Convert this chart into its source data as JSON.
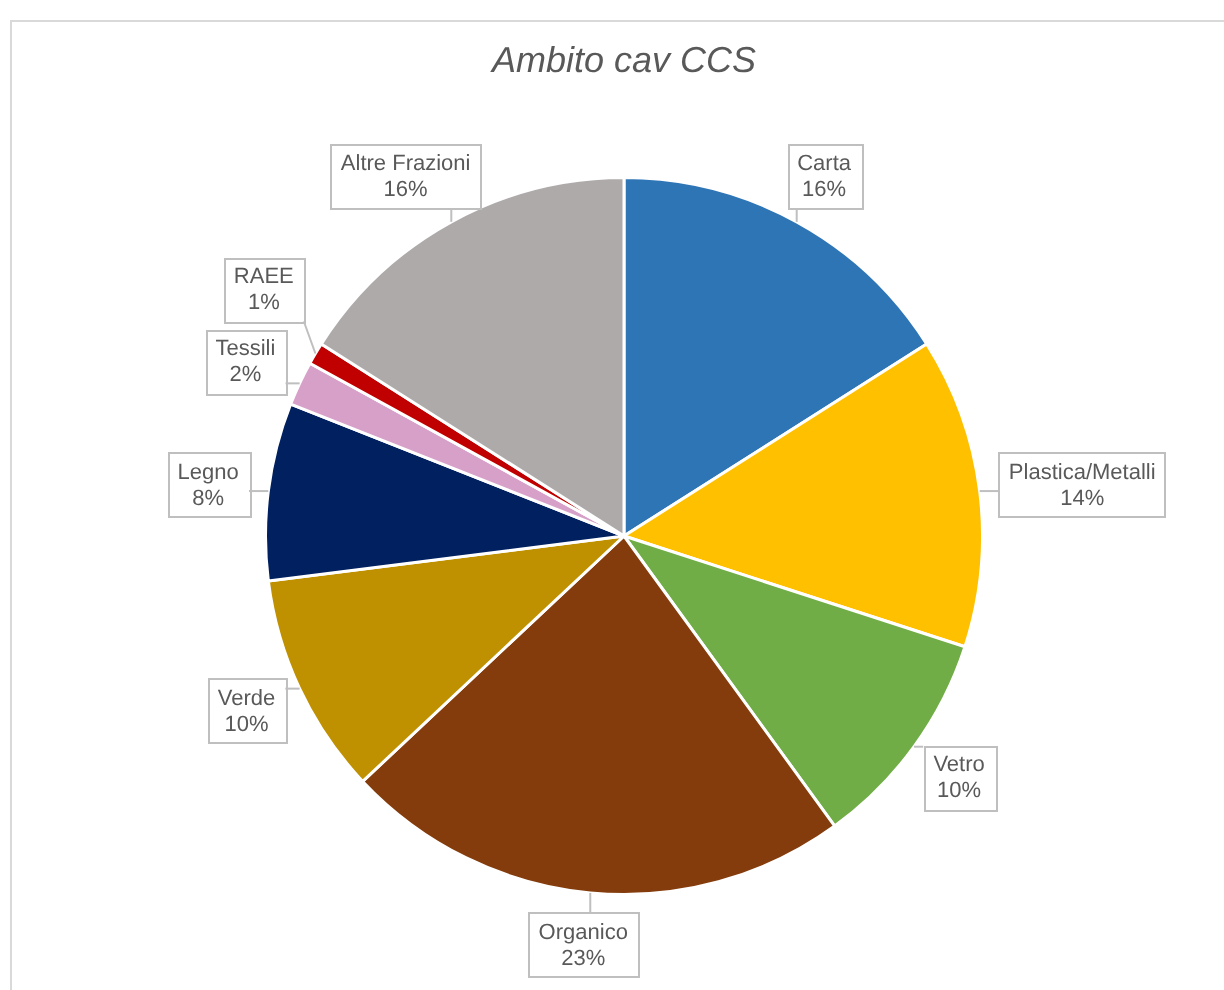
{
  "chart_data": {
    "type": "pie",
    "title": "Ambito cav CCS",
    "categories": [
      "Carta",
      "Plastica/Metalli",
      "Vetro",
      "Organico",
      "Verde",
      "Legno",
      "Tessili",
      "RAEE",
      "Altre Frazioni"
    ],
    "values": [
      16,
      14,
      10,
      23,
      10,
      8,
      2,
      1,
      16
    ],
    "colors": [
      "#2e75b6",
      "#ffc000",
      "#70ad47",
      "#843c0c",
      "#bf9000",
      "#002060",
      "#d6a0c9",
      "#c00000",
      "#aeaaaa"
    ],
    "value_labels": [
      "16%",
      "14%",
      "10%",
      "23%",
      "10%",
      "8%",
      "2%",
      "1%",
      "16%"
    ]
  }
}
